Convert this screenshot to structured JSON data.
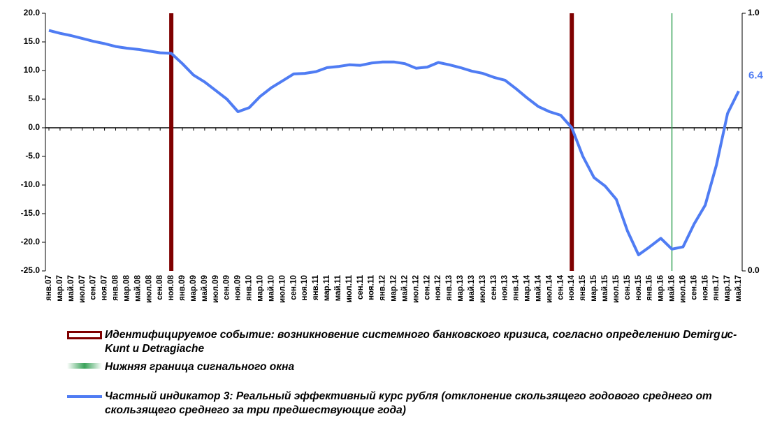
{
  "chart_data": {
    "type": "line",
    "categories": [
      "янв.07",
      "мар.07",
      "май.07",
      "июл.07",
      "сен.07",
      "ноя.07",
      "янв.08",
      "мар.08",
      "май.08",
      "июл.08",
      "сен.08",
      "ноя.08",
      "янв.09",
      "мар.09",
      "май.09",
      "июл.09",
      "сен.09",
      "ноя.09",
      "янв.10",
      "мар.10",
      "май.10",
      "июл.10",
      "сен.10",
      "ноя.10",
      "янв.11",
      "мар.11",
      "май.11",
      "июл.11",
      "сен.11",
      "ноя.11",
      "янв.12",
      "мар.12",
      "май.12",
      "июл.12",
      "сен.12",
      "ноя.12",
      "янв.13",
      "мар.13",
      "май.13",
      "июл.13",
      "сен.13",
      "ноя.13",
      "янв.14",
      "мар.14",
      "май.14",
      "июл.14",
      "сен.14",
      "ноя.14",
      "янв.15",
      "мар.15",
      "май.15",
      "июл.15",
      "сен.15",
      "ноя.15",
      "янв.16",
      "мар.16",
      "май.16",
      "июл.16",
      "сен.16",
      "ноя.16",
      "янв.17",
      "мар.17",
      "май.17"
    ],
    "series": [
      {
        "name": "Идентифицируемое событие: возникновение системного банковского кризиса, согласно определению Demirgսc-Kunt и Detragiache",
        "type": "bar",
        "axis": "y2",
        "color": "#7f0000",
        "values": [
          null,
          null,
          null,
          null,
          null,
          null,
          null,
          null,
          null,
          null,
          null,
          1,
          null,
          null,
          null,
          null,
          null,
          null,
          null,
          null,
          null,
          null,
          null,
          null,
          null,
          null,
          null,
          null,
          null,
          null,
          null,
          null,
          null,
          null,
          null,
          null,
          null,
          null,
          null,
          null,
          null,
          null,
          null,
          null,
          null,
          null,
          null,
          1,
          null,
          null,
          null,
          null,
          null,
          null,
          null,
          null,
          null,
          null,
          null,
          null,
          null,
          null,
          null
        ]
      },
      {
        "name": "Нижняя граница сигнального окна",
        "type": "bar",
        "axis": "y2",
        "color": "#3aa35a",
        "values": [
          null,
          null,
          null,
          null,
          null,
          null,
          null,
          null,
          null,
          null,
          null,
          null,
          null,
          null,
          null,
          null,
          null,
          null,
          null,
          null,
          null,
          null,
          null,
          null,
          null,
          null,
          null,
          null,
          null,
          null,
          null,
          null,
          null,
          null,
          null,
          null,
          null,
          null,
          null,
          null,
          null,
          null,
          null,
          null,
          null,
          null,
          null,
          null,
          null,
          null,
          null,
          null,
          null,
          null,
          null,
          null,
          1,
          null,
          null,
          null,
          null,
          null,
          null
        ]
      },
      {
        "name": "Частный индикатор 3: Реальный эффективный курс рубля (отклонение скользящего годового среднего от скользящего среднего за три предшествующие года)",
        "type": "line",
        "color": "#4f7cf3",
        "values": [
          17.0,
          16.5,
          16.1,
          15.6,
          15.1,
          14.7,
          14.2,
          13.9,
          13.7,
          13.4,
          13.1,
          13.0,
          11.2,
          9.2,
          8.0,
          6.5,
          5.0,
          2.8,
          3.5,
          5.5,
          7.0,
          8.2,
          9.4,
          9.5,
          9.8,
          10.5,
          10.7,
          11.0,
          10.9,
          11.3,
          11.5,
          11.5,
          11.2,
          10.4,
          10.6,
          11.4,
          11.0,
          10.5,
          9.9,
          9.5,
          8.8,
          8.3,
          6.8,
          5.2,
          3.7,
          2.8,
          2.2,
          0.0,
          -5.0,
          -8.7,
          -10.2,
          -12.5,
          -18.0,
          -22.2,
          -20.8,
          -19.3,
          -21.2,
          -20.8,
          -16.8,
          -13.5,
          -6.5,
          2.5,
          6.4
        ]
      }
    ],
    "ylim": [
      -25,
      20
    ],
    "yticks": [
      {
        "value": 20,
        "label": "20.0"
      },
      {
        "value": 15,
        "label": "15.0"
      },
      {
        "value": 10,
        "label": "10.0"
      },
      {
        "value": 5,
        "label": "5.0"
      },
      {
        "value": 0,
        "label": "0.0"
      },
      {
        "value": -5,
        "label": "-5.0"
      },
      {
        "value": -10,
        "label": "-10.0"
      },
      {
        "value": -15,
        "label": "-15.0"
      },
      {
        "value": -20,
        "label": "-20.0"
      },
      {
        "value": -25,
        "label": "-25.0"
      }
    ],
    "y2lim": [
      0,
      1
    ],
    "y2ticks": [
      {
        "value": 0,
        "label": "0.0"
      },
      {
        "value": 1,
        "label": "1.0"
      }
    ]
  }
}
